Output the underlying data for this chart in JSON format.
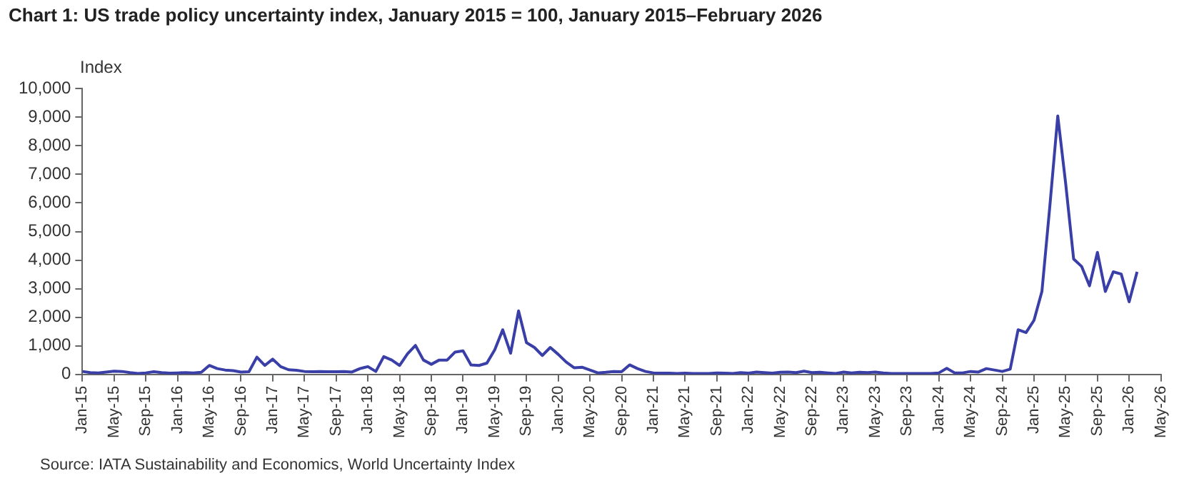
{
  "chart_data": {
    "type": "line",
    "title": "Chart 1: US trade policy uncertainty index, January 2015 = 100, January 2015–February 2026",
    "ylabel": "Index",
    "annotations": [
      "Source: IATA Sustainability and Economics, World Uncertainty Index"
    ],
    "x": [
      "2015-01",
      "2015-02",
      "2015-03",
      "2015-04",
      "2015-05",
      "2015-06",
      "2015-07",
      "2015-08",
      "2015-09",
      "2015-10",
      "2015-11",
      "2015-12",
      "2016-01",
      "2016-02",
      "2016-03",
      "2016-04",
      "2016-05",
      "2016-06",
      "2016-07",
      "2016-08",
      "2016-09",
      "2016-10",
      "2016-11",
      "2016-12",
      "2017-01",
      "2017-02",
      "2017-03",
      "2017-04",
      "2017-05",
      "2017-06",
      "2017-07",
      "2017-08",
      "2017-09",
      "2017-10",
      "2017-11",
      "2017-12",
      "2018-01",
      "2018-02",
      "2018-03",
      "2018-04",
      "2018-05",
      "2018-06",
      "2018-07",
      "2018-08",
      "2018-09",
      "2018-10",
      "2018-11",
      "2018-12",
      "2019-01",
      "2019-02",
      "2019-03",
      "2019-04",
      "2019-05",
      "2019-06",
      "2019-07",
      "2019-08",
      "2019-09",
      "2019-10",
      "2019-11",
      "2019-12",
      "2020-01",
      "2020-02",
      "2020-03",
      "2020-04",
      "2020-05",
      "2020-06",
      "2020-07",
      "2020-08",
      "2020-09",
      "2020-10",
      "2020-11",
      "2020-12",
      "2021-01",
      "2021-02",
      "2021-03",
      "2021-04",
      "2021-05",
      "2021-06",
      "2021-07",
      "2021-08",
      "2021-09",
      "2021-10",
      "2021-11",
      "2021-12",
      "2022-01",
      "2022-02",
      "2022-03",
      "2022-04",
      "2022-05",
      "2022-06",
      "2022-07",
      "2022-08",
      "2022-09",
      "2022-10",
      "2022-11",
      "2022-12",
      "2023-01",
      "2023-02",
      "2023-03",
      "2023-04",
      "2023-05",
      "2023-06",
      "2023-07",
      "2023-08",
      "2023-09",
      "2023-10",
      "2023-11",
      "2023-12",
      "2024-01",
      "2024-02",
      "2024-03",
      "2024-04",
      "2024-05",
      "2024-06",
      "2024-07",
      "2024-08",
      "2024-09",
      "2024-10",
      "2024-11",
      "2024-12",
      "2025-01",
      "2025-02",
      "2025-03",
      "2025-04",
      "2025-05",
      "2025-06",
      "2025-07",
      "2025-08",
      "2025-09",
      "2025-10",
      "2025-11",
      "2025-12",
      "2026-01",
      "2026-02"
    ],
    "series": [
      {
        "color": "#3a3fa8",
        "values": [
          100,
          60,
          50,
          80,
          110,
          100,
          60,
          30,
          50,
          90,
          60,
          40,
          50,
          60,
          50,
          70,
          310,
          200,
          150,
          130,
          80,
          90,
          600,
          310,
          530,
          270,
          160,
          140,
          100,
          90,
          100,
          90,
          90,
          100,
          80,
          200,
          270,
          100,
          620,
          500,
          310,
          720,
          1010,
          500,
          350,
          500,
          500,
          780,
          820,
          330,
          310,
          390,
          860,
          1560,
          740,
          2220,
          1110,
          940,
          660,
          940,
          700,
          430,
          230,
          250,
          150,
          50,
          70,
          100,
          90,
          330,
          200,
          100,
          50,
          40,
          40,
          30,
          40,
          30,
          30,
          30,
          50,
          40,
          30,
          60,
          40,
          80,
          60,
          40,
          70,
          80,
          60,
          110,
          60,
          70,
          50,
          30,
          80,
          50,
          70,
          60,
          80,
          50,
          30,
          30,
          30,
          30,
          30,
          30,
          50,
          210,
          50,
          50,
          100,
          80,
          200,
          150,
          100,
          180,
          1560,
          1460,
          1890,
          2900,
          5890,
          9050,
          6670,
          4040,
          3780,
          3100,
          4270,
          2900,
          3590,
          3510,
          2540,
          3590
        ]
      }
    ],
    "xlim": [
      "2015-01",
      "2026-05"
    ],
    "xticks": [
      {
        "value": "2015-01",
        "label": "Jan-15"
      },
      {
        "value": "2015-05",
        "label": "May-15"
      },
      {
        "value": "2015-09",
        "label": "Sep-15"
      },
      {
        "value": "2016-01",
        "label": "Jan-16"
      },
      {
        "value": "2016-05",
        "label": "May-16"
      },
      {
        "value": "2016-09",
        "label": "Sep-16"
      },
      {
        "value": "2017-01",
        "label": "Jan-17"
      },
      {
        "value": "2017-05",
        "label": "May-17"
      },
      {
        "value": "2017-09",
        "label": "Sep-17"
      },
      {
        "value": "2018-01",
        "label": "Jan-18"
      },
      {
        "value": "2018-05",
        "label": "May-18"
      },
      {
        "value": "2018-09",
        "label": "Sep-18"
      },
      {
        "value": "2019-01",
        "label": "Jan-19"
      },
      {
        "value": "2019-05",
        "label": "May-19"
      },
      {
        "value": "2019-09",
        "label": "Sep-19"
      },
      {
        "value": "2020-01",
        "label": "Jan-20"
      },
      {
        "value": "2020-05",
        "label": "May-20"
      },
      {
        "value": "2020-09",
        "label": "Sep-20"
      },
      {
        "value": "2021-01",
        "label": "Jan-21"
      },
      {
        "value": "2021-05",
        "label": "May-21"
      },
      {
        "value": "2021-09",
        "label": "Sep-21"
      },
      {
        "value": "2022-01",
        "label": "Jan-22"
      },
      {
        "value": "2022-05",
        "label": "May-22"
      },
      {
        "value": "2022-09",
        "label": "Sep-22"
      },
      {
        "value": "2023-01",
        "label": "Jan-23"
      },
      {
        "value": "2023-05",
        "label": "May-23"
      },
      {
        "value": "2023-09",
        "label": "Sep-23"
      },
      {
        "value": "2024-01",
        "label": "Jan-24"
      },
      {
        "value": "2024-05",
        "label": "May-24"
      },
      {
        "value": "2024-09",
        "label": "Sep-24"
      },
      {
        "value": "2025-01",
        "label": "Jan-25"
      },
      {
        "value": "2025-05",
        "label": "May-25"
      },
      {
        "value": "2025-09",
        "label": "Sep-25"
      },
      {
        "value": "2026-01",
        "label": "Jan-26"
      },
      {
        "value": "2026-05",
        "label": "May-26"
      }
    ],
    "ylim": [
      0,
      10000
    ],
    "yticks": [
      {
        "value": 0,
        "label": "0"
      },
      {
        "value": 1000,
        "label": "1,000"
      },
      {
        "value": 2000,
        "label": "2,000"
      },
      {
        "value": 3000,
        "label": "3,000"
      },
      {
        "value": 4000,
        "label": "4,000"
      },
      {
        "value": 5000,
        "label": "5,000"
      },
      {
        "value": 6000,
        "label": "6,000"
      },
      {
        "value": 7000,
        "label": "7,000"
      },
      {
        "value": 8000,
        "label": "8,000"
      },
      {
        "value": 9000,
        "label": "9,000"
      },
      {
        "value": 10000,
        "label": "10,000"
      }
    ]
  }
}
